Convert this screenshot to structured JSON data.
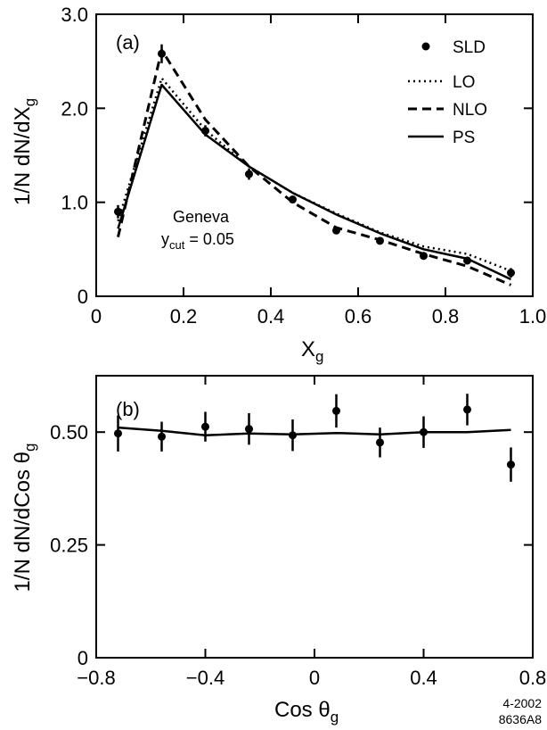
{
  "chart_data": [
    {
      "type": "line",
      "panel_label": "(a)",
      "xlabel": "X",
      "xlabel_sub": "g",
      "ylabel": "1/N dN/dX",
      "ylabel_sub": "g",
      "xlim": [
        0,
        1.0
      ],
      "ylim": [
        0,
        3.0
      ],
      "x_ticks": [
        0,
        0.2,
        0.4,
        0.6,
        0.8,
        1.0
      ],
      "x_tick_labels": [
        "0",
        "0.2",
        "0.4",
        "0.6",
        "0.8",
        "1.0"
      ],
      "y_ticks": [
        0,
        1.0,
        2.0,
        3.0
      ],
      "y_tick_labels": [
        "0",
        "1.0",
        "2.0",
        "3.0"
      ],
      "annotation": {
        "line1": "Geneva",
        "y": "y",
        "y_sub": "cut",
        "value": " = 0.05"
      },
      "legend": [
        "SLD",
        "LO",
        "NLO",
        "PS"
      ],
      "series": [
        {
          "name": "SLD",
          "style": "points",
          "x": [
            0.05,
            0.15,
            0.25,
            0.35,
            0.45,
            0.55,
            0.65,
            0.75,
            0.85,
            0.95
          ],
          "y": [
            0.9,
            2.58,
            1.76,
            1.3,
            1.03,
            0.7,
            0.59,
            0.43,
            0.38,
            0.25
          ],
          "err": [
            0.07,
            0.1,
            0.06,
            0.06,
            0.03,
            0.03,
            0.03,
            0.03,
            0.04,
            0.05
          ]
        },
        {
          "name": "LO",
          "style": "dotted",
          "x": [
            0.05,
            0.15,
            0.25,
            0.35,
            0.45,
            0.55,
            0.65,
            0.75,
            0.85,
            0.95
          ],
          "y": [
            0.8,
            2.32,
            1.77,
            1.38,
            1.1,
            0.88,
            0.68,
            0.53,
            0.45,
            0.27
          ]
        },
        {
          "name": "NLO",
          "style": "dashed",
          "x": [
            0.05,
            0.15,
            0.25,
            0.35,
            0.45,
            0.55,
            0.65,
            0.75,
            0.85,
            0.95
          ],
          "y": [
            0.63,
            2.62,
            1.88,
            1.38,
            1.0,
            0.73,
            0.6,
            0.45,
            0.32,
            0.12
          ]
        },
        {
          "name": "PS",
          "style": "solid",
          "x": [
            0.05,
            0.15,
            0.25,
            0.35,
            0.45,
            0.55,
            0.65,
            0.75,
            0.85,
            0.95
          ],
          "y": [
            0.72,
            2.25,
            1.72,
            1.38,
            1.1,
            0.87,
            0.67,
            0.5,
            0.4,
            0.18
          ]
        }
      ]
    },
    {
      "type": "line",
      "panel_label": "(b)",
      "xlabel": "Cos θ",
      "xlabel_sub": "g",
      "ylabel": "1/N dN/dCos θ",
      "ylabel_sub": "g",
      "xlim": [
        -0.8,
        0.8
      ],
      "ylim": [
        0,
        0.625
      ],
      "x_ticks": [
        -0.8,
        -0.4,
        0,
        0.4,
        0.8
      ],
      "x_tick_labels": [
        "−0.8",
        "−0.4",
        "0",
        "0.4",
        "0.8"
      ],
      "y_ticks": [
        0,
        0.25,
        0.5
      ],
      "y_tick_labels": [
        "0",
        "0.25",
        "0.50"
      ],
      "series": [
        {
          "name": "SLD",
          "style": "points",
          "x": [
            -0.72,
            -0.56,
            -0.4,
            -0.24,
            -0.08,
            0.08,
            0.24,
            0.4,
            0.56,
            0.72
          ],
          "y": [
            0.497,
            0.49,
            0.512,
            0.507,
            0.493,
            0.547,
            0.477,
            0.5,
            0.55,
            0.428
          ],
          "err": [
            0.04,
            0.033,
            0.033,
            0.035,
            0.035,
            0.037,
            0.033,
            0.035,
            0.035,
            0.038
          ]
        },
        {
          "name": "PS",
          "style": "solid",
          "x": [
            -0.72,
            -0.56,
            -0.4,
            -0.24,
            -0.08,
            0.08,
            0.24,
            0.4,
            0.56,
            0.72
          ],
          "y": [
            0.51,
            0.503,
            0.493,
            0.497,
            0.495,
            0.498,
            0.495,
            0.5,
            0.5,
            0.505
          ]
        }
      ]
    }
  ],
  "footer": {
    "line1": "4-2002",
    "line2": "8636A8"
  }
}
